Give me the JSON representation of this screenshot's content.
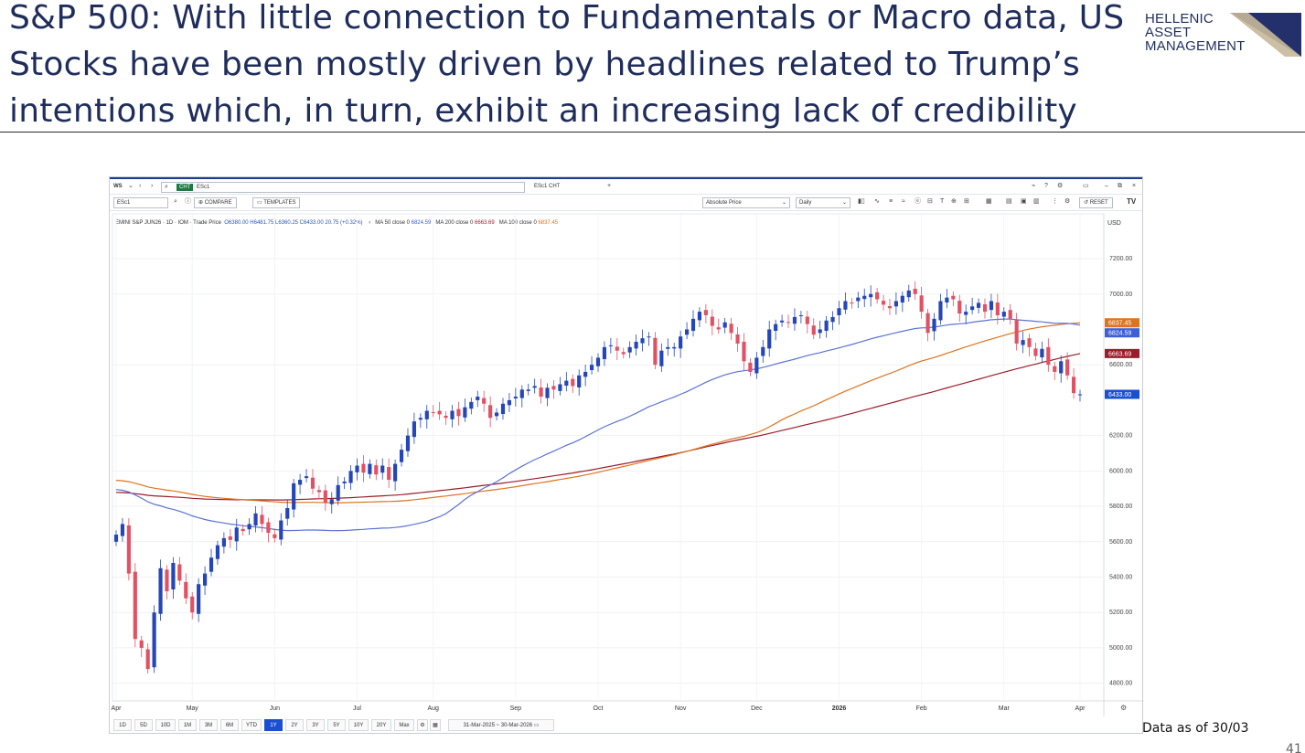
{
  "slide": {
    "title": "S&P 500: With little connection to Fundamentals or Macro data, US Stocks have been mostly driven by headlines related to Trump’s intentions which, in turn, exhibit an increasing lack of credibility",
    "logo_line1": "HELLENIC",
    "logo_line2": "ASSET",
    "logo_line3": "MANAGEMENT",
    "note": "Data as of 30/03",
    "page_number": "41"
  },
  "toolbar": {
    "workspace": "WS",
    "instrument_box_tag": "CHT",
    "instrument_box_value": "ESc1",
    "tab_label": "ESc1 CHT",
    "symbol_field": "ESc1",
    "compare_label": "COMPARE",
    "templates_label": "TEMPLATES",
    "price_mode": "Absolute Price",
    "interval": "Daily",
    "reset_label": "RESET"
  },
  "legend": {
    "instrument": "EMINI S&P JUN26 · 1D · IOM · Trade Price",
    "ohlc": "O6380.00  H6481.75  L6360.25  C6433.00  20.75 (+0.32%)",
    "ma50": "MA 50 close 0",
    "ma50_value": "6824.59",
    "ma200": "MA 200 close 0",
    "ma200_value": "6663.69",
    "ma100": "MA 100 close 0",
    "ma100_value": "6837.45"
  },
  "chart_data": {
    "type": "candlestick",
    "title": "EMINI S&P JUN26 · 1D",
    "currency": "USD",
    "y_range": [
      4700,
      7350
    ],
    "y_ticks": [
      7200,
      7000,
      6600,
      6200,
      6000,
      5800,
      5600,
      5400,
      5200,
      5000,
      4800
    ],
    "x_labels": [
      "Apr",
      "May",
      "Jun",
      "Jul",
      "Aug",
      "Sep",
      "Oct",
      "Nov",
      "Dec",
      "2026",
      "Feb",
      "Mar",
      "Apr"
    ],
    "series": [
      {
        "name": "ESc1 close",
        "color": "#2a4fbf",
        "points": [
          [
            0,
            5640
          ],
          [
            1,
            5700
          ],
          [
            2,
            5420
          ],
          [
            3,
            5050
          ],
          [
            4,
            5000
          ],
          [
            5,
            4880
          ],
          [
            6,
            5200
          ],
          [
            7,
            5450
          ],
          [
            8,
            5320
          ],
          [
            9,
            5480
          ],
          [
            10,
            5380
          ],
          [
            11,
            5280
          ],
          [
            12,
            5200
          ],
          [
            13,
            5360
          ],
          [
            14,
            5420
          ],
          [
            15,
            5510
          ],
          [
            16,
            5580
          ],
          [
            17,
            5620
          ],
          [
            18,
            5610
          ],
          [
            19,
            5680
          ],
          [
            20,
            5660
          ],
          [
            21,
            5700
          ],
          [
            22,
            5760
          ],
          [
            23,
            5700
          ],
          [
            24,
            5650
          ],
          [
            25,
            5620
          ],
          [
            26,
            5720
          ],
          [
            27,
            5790
          ],
          [
            28,
            5930
          ],
          [
            29,
            5950
          ],
          [
            30,
            5970
          ],
          [
            31,
            5900
          ],
          [
            32,
            5880
          ],
          [
            33,
            5820
          ],
          [
            34,
            5840
          ],
          [
            35,
            5920
          ],
          [
            36,
            5940
          ],
          [
            37,
            6000
          ],
          [
            38,
            6030
          ],
          [
            39,
            5990
          ],
          [
            40,
            6040
          ],
          [
            41,
            5980
          ],
          [
            42,
            6030
          ],
          [
            43,
            5950
          ],
          [
            44,
            6040
          ],
          [
            45,
            6120
          ],
          [
            46,
            6200
          ],
          [
            47,
            6280
          ],
          [
            48,
            6300
          ],
          [
            49,
            6340
          ],
          [
            50,
            6330
          ],
          [
            51,
            6320
          ],
          [
            52,
            6300
          ],
          [
            53,
            6340
          ],
          [
            54,
            6310
          ],
          [
            55,
            6360
          ],
          [
            56,
            6390
          ],
          [
            57,
            6420
          ],
          [
            58,
            6380
          ],
          [
            59,
            6300
          ],
          [
            60,
            6330
          ],
          [
            61,
            6380
          ],
          [
            62,
            6400
          ],
          [
            63,
            6420
          ],
          [
            64,
            6460
          ],
          [
            65,
            6460
          ],
          [
            66,
            6480
          ],
          [
            67,
            6420
          ],
          [
            68,
            6470
          ],
          [
            69,
            6460
          ],
          [
            70,
            6490
          ],
          [
            71,
            6510
          ],
          [
            72,
            6480
          ],
          [
            73,
            6540
          ],
          [
            74,
            6560
          ],
          [
            75,
            6600
          ],
          [
            76,
            6640
          ],
          [
            77,
            6700
          ],
          [
            78,
            6710
          ],
          [
            79,
            6680
          ],
          [
            80,
            6660
          ],
          [
            81,
            6700
          ],
          [
            82,
            6730
          ],
          [
            83,
            6750
          ],
          [
            84,
            6760
          ],
          [
            85,
            6600
          ],
          [
            86,
            6680
          ],
          [
            87,
            6700
          ],
          [
            88,
            6700
          ],
          [
            89,
            6760
          ],
          [
            90,
            6800
          ],
          [
            91,
            6860
          ],
          [
            92,
            6900
          ],
          [
            93,
            6880
          ],
          [
            94,
            6820
          ],
          [
            95,
            6800
          ],
          [
            96,
            6840
          ],
          [
            97,
            6780
          ],
          [
            98,
            6720
          ],
          [
            99,
            6620
          ],
          [
            100,
            6560
          ],
          [
            101,
            6640
          ],
          [
            102,
            6700
          ],
          [
            103,
            6800
          ],
          [
            104,
            6830
          ],
          [
            105,
            6850
          ],
          [
            106,
            6840
          ],
          [
            107,
            6870
          ],
          [
            108,
            6880
          ],
          [
            109,
            6830
          ],
          [
            110,
            6770
          ],
          [
            111,
            6800
          ],
          [
            112,
            6850
          ],
          [
            113,
            6870
          ],
          [
            114,
            6920
          ],
          [
            115,
            6960
          ],
          [
            116,
            6950
          ],
          [
            117,
            6980
          ],
          [
            118,
            6990
          ],
          [
            119,
            7000
          ],
          [
            120,
            6970
          ],
          [
            121,
            6940
          ],
          [
            122,
            6920
          ],
          [
            123,
            6960
          ],
          [
            124,
            6990
          ],
          [
            125,
            7020
          ],
          [
            126,
            7000
          ],
          [
            127,
            6900
          ],
          [
            128,
            6780
          ],
          [
            129,
            6860
          ],
          [
            130,
            6960
          ],
          [
            131,
            6980
          ],
          [
            132,
            6970
          ],
          [
            133,
            6890
          ],
          [
            134,
            6900
          ],
          [
            135,
            6930
          ],
          [
            136,
            6950
          ],
          [
            137,
            6900
          ],
          [
            138,
            6960
          ],
          [
            139,
            6880
          ],
          [
            140,
            6900
          ],
          [
            141,
            6860
          ],
          [
            142,
            6720
          ],
          [
            143,
            6740
          ],
          [
            144,
            6700
          ],
          [
            145,
            6650
          ],
          [
            146,
            6690
          ],
          [
            147,
            6600
          ],
          [
            148,
            6560
          ],
          [
            149,
            6620
          ],
          [
            150,
            6540
          ],
          [
            151,
            6440
          ],
          [
            152,
            6433
          ]
        ]
      },
      {
        "name": "MA 50 close 0",
        "color": "#5b72d6",
        "last_value": 6824.59
      },
      {
        "name": "MA 100 close 0",
        "color": "#e0731f",
        "last_value": 6837.45
      },
      {
        "name": "MA 200 close 0",
        "color": "#9b1c2a",
        "last_value": 6663.69
      }
    ],
    "last_price": 6433.0
  },
  "range_buttons": [
    "1D",
    "5D",
    "10D",
    "1M",
    "3M",
    "6M",
    "YTD",
    "1Y",
    "2Y",
    "3Y",
    "5Y",
    "10Y",
    "20Y",
    "Max"
  ],
  "active_range": "1Y",
  "date_range": "31-Mar-2025  ~  30-Mar-2026"
}
